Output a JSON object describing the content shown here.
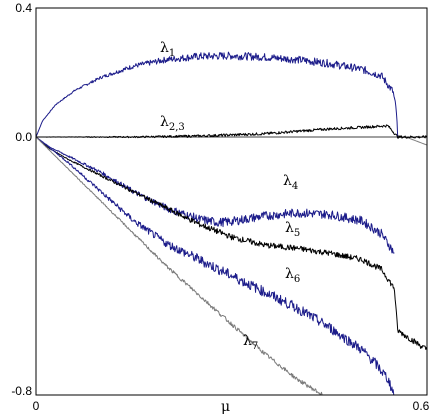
{
  "chart_data": {
    "type": "line",
    "title": "",
    "xlabel": "μ",
    "ylabel": "",
    "xlim": [
      0,
      0.6
    ],
    "ylim": [
      -0.8,
      0.4
    ],
    "x_ticks": [
      {
        "value": 0,
        "label": "0"
      },
      {
        "value": 0.6,
        "label": "0.6"
      }
    ],
    "y_ticks": [
      {
        "value": 0.4,
        "label": "0.4"
      },
      {
        "value": 0.0,
        "label": "0.0"
      },
      {
        "value": -0.8,
        "label": "-0.8"
      }
    ],
    "grid": false,
    "legend": "none",
    "series": [
      {
        "name": "λ1",
        "label_main": "λ",
        "label_sub": "1",
        "color": "#1c1c8a",
        "noise": 0.012,
        "x": [
          0,
          0.01,
          0.03,
          0.06,
          0.1,
          0.15,
          0.2,
          0.25,
          0.3,
          0.35,
          0.4,
          0.45,
          0.5,
          0.53,
          0.548,
          0.553,
          0.555
        ],
        "y": [
          0,
          0.05,
          0.1,
          0.145,
          0.185,
          0.22,
          0.24,
          0.25,
          0.252,
          0.248,
          0.24,
          0.228,
          0.21,
          0.19,
          0.14,
          0.08,
          0.0
        ]
      },
      {
        "name": "λ1 continuation",
        "label_main": "",
        "label_sub": "",
        "color": "#808080",
        "noise": 0,
        "x": [
          0.555,
          0.57,
          0.6
        ],
        "y": [
          0.0,
          -0.002,
          -0.025
        ]
      },
      {
        "name": "λ2,3",
        "label_main": "λ",
        "label_sub": "2,3",
        "color": "#000000",
        "noise": 0.004,
        "x": [
          0,
          0.15,
          0.25,
          0.35,
          0.45,
          0.5,
          0.54,
          0.555,
          0.6
        ],
        "y": [
          0,
          0,
          0.003,
          0.01,
          0.025,
          0.03,
          0.035,
          0.0,
          0.0
        ]
      },
      {
        "name": "λ4",
        "label_main": "λ",
        "label_sub": "4",
        "color": "#1c1c8a",
        "noise": 0.014,
        "x": [
          0,
          0.02,
          0.05,
          0.1,
          0.15,
          0.2,
          0.25,
          0.28,
          0.3,
          0.35,
          0.4,
          0.45,
          0.5,
          0.53,
          0.55
        ],
        "y": [
          0,
          -0.03,
          -0.06,
          -0.11,
          -0.17,
          -0.22,
          -0.255,
          -0.265,
          -0.262,
          -0.245,
          -0.235,
          -0.24,
          -0.26,
          -0.3,
          -0.36
        ]
      },
      {
        "name": "λ5",
        "label_main": "λ",
        "label_sub": "5",
        "color": "#000000",
        "noise": 0.009,
        "x": [
          0,
          0.02,
          0.05,
          0.1,
          0.15,
          0.2,
          0.25,
          0.3,
          0.35,
          0.4,
          0.45,
          0.5,
          0.53,
          0.55,
          0.553,
          0.555,
          0.6
        ],
        "y": [
          0,
          -0.035,
          -0.07,
          -0.12,
          -0.17,
          -0.22,
          -0.27,
          -0.31,
          -0.335,
          -0.345,
          -0.36,
          -0.38,
          -0.41,
          -0.47,
          -0.55,
          -0.6,
          -0.66
        ]
      },
      {
        "name": "λ6",
        "label_main": "λ",
        "label_sub": "6",
        "color": "#1c1c8a",
        "noise": 0.016,
        "x": [
          0,
          0.05,
          0.1,
          0.15,
          0.2,
          0.25,
          0.3,
          0.35,
          0.4,
          0.45,
          0.5,
          0.52,
          0.54,
          0.55
        ],
        "y": [
          0,
          -0.08,
          -0.17,
          -0.26,
          -0.33,
          -0.38,
          -0.43,
          -0.48,
          -0.53,
          -0.59,
          -0.66,
          -0.7,
          -0.75,
          -0.8
        ]
      },
      {
        "name": "λ7",
        "label_main": "λ",
        "label_sub": "7",
        "color": "#7a7a7a",
        "noise": 0.006,
        "x": [
          0,
          0.05,
          0.1,
          0.15,
          0.2,
          0.25,
          0.3,
          0.35,
          0.4,
          0.44
        ],
        "y": [
          0,
          -0.1,
          -0.2,
          -0.3,
          -0.4,
          -0.49,
          -0.58,
          -0.67,
          -0.75,
          -0.8
        ]
      }
    ]
  }
}
